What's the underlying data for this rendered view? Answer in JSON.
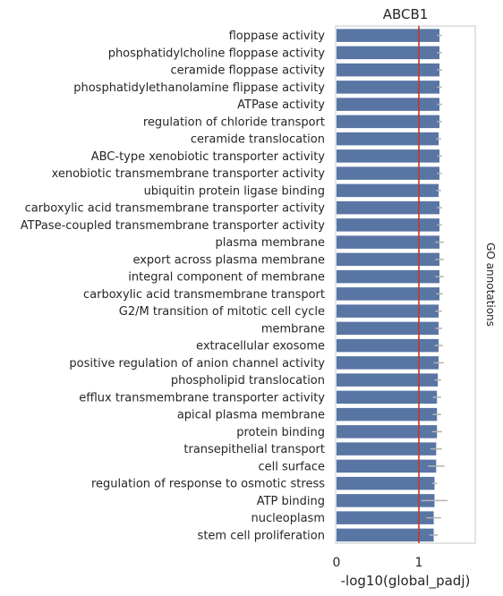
{
  "chart_data": {
    "type": "bar",
    "orientation": "horizontal",
    "title": "ABCB1",
    "xlabel": "-log10(global_padj)",
    "right_label": "GO annotations",
    "xlim": [
      0,
      1.7
    ],
    "xticks": [
      0,
      1
    ],
    "reference_line": 1,
    "grid": false,
    "categories": [
      "floppase activity",
      "phosphatidylcholine floppase activity",
      "ceramide floppase activity",
      "phosphatidylethanolamine flippase activity",
      "ATPase activity",
      "regulation of chloride transport",
      "ceramide translocation",
      "ABC-type xenobiotic transporter activity",
      "xenobiotic transmembrane transporter activity",
      "ubiquitin protein ligase binding",
      "carboxylic acid transmembrane transporter activity",
      "ATPase-coupled transmembrane transporter activity",
      "plasma membrane",
      "export across plasma membrane",
      "integral component of membrane",
      "carboxylic acid transmembrane transport",
      "G2/M transition of mitotic cell cycle",
      "membrane",
      "extracellular exosome",
      "positive regulation of anion channel activity",
      "phospholipid translocation",
      "efflux transmembrane transporter activity",
      "apical plasma membrane",
      "protein binding",
      "transepithelial transport",
      "cell surface",
      "regulation of response to osmotic stress",
      "ATP binding",
      "nucleoplasm",
      "stem cell proliferation"
    ],
    "values": [
      1.25,
      1.25,
      1.25,
      1.25,
      1.25,
      1.25,
      1.24,
      1.25,
      1.25,
      1.24,
      1.25,
      1.25,
      1.25,
      1.25,
      1.25,
      1.25,
      1.24,
      1.24,
      1.24,
      1.24,
      1.23,
      1.22,
      1.22,
      1.22,
      1.21,
      1.21,
      1.19,
      1.19,
      1.18,
      1.18
    ],
    "errors": [
      0.03,
      0.03,
      0.03,
      0.03,
      0.03,
      0.03,
      0.03,
      0.03,
      0.03,
      0.03,
      0.03,
      0.03,
      0.05,
      0.05,
      0.05,
      0.04,
      0.04,
      0.04,
      0.05,
      0.06,
      0.04,
      0.05,
      0.05,
      0.06,
      0.07,
      0.1,
      0.03,
      0.16,
      0.09,
      0.05
    ],
    "colors": {
      "bar": "#5875a4",
      "error": "#b3b3b3",
      "refline": "#c0392b",
      "axes": "#d0d0d0"
    }
  }
}
